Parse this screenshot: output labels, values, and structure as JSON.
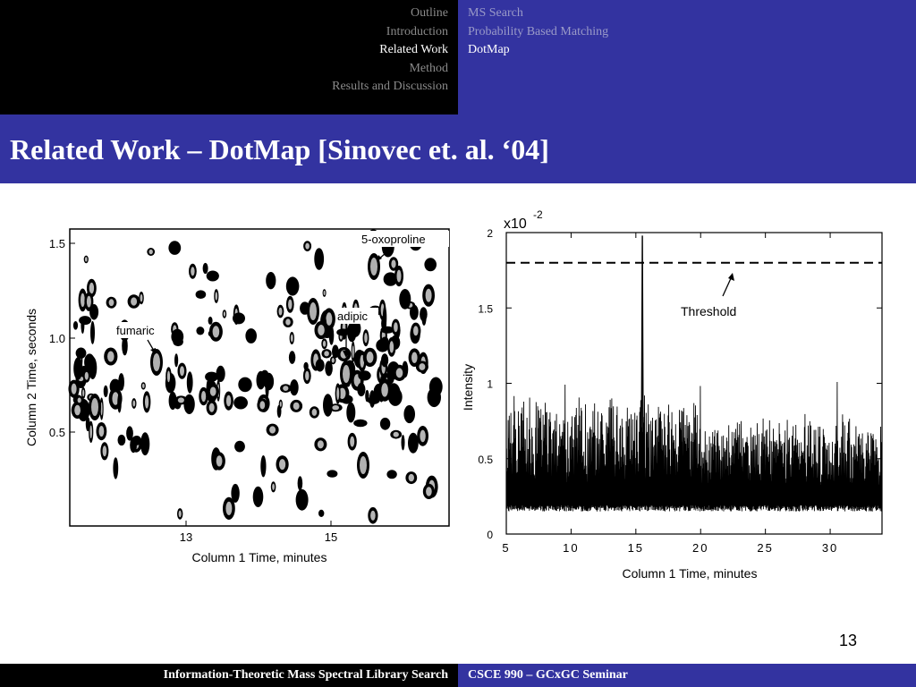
{
  "nav": {
    "sections": [
      {
        "label": "Outline",
        "active": false
      },
      {
        "label": "Introduction",
        "active": false
      },
      {
        "label": "Related Work",
        "active": true
      },
      {
        "label": "Method",
        "active": false
      },
      {
        "label": "Results and Discussion",
        "active": false
      }
    ],
    "subsections": [
      {
        "label": "MS Search",
        "active": false
      },
      {
        "label": "Probability Based Matching",
        "active": false
      },
      {
        "label": "DotMap",
        "active": true
      }
    ]
  },
  "slide": {
    "title": "Related Work – DotMap [Sinovec et. al. ‘04]",
    "number": "13"
  },
  "footer": {
    "left": "Information-Theoretic Mass Spectral Library Search",
    "right": "CSCE 990 – GCxGC Seminar"
  },
  "chart_data": [
    {
      "type": "scatter",
      "xlabel": "Column 1 Time, minutes",
      "ylabel": "Column 2 Time, seconds",
      "x_ticks": [
        "13",
        "15"
      ],
      "y_ticks": [
        "0.5",
        "1.0",
        "1.5"
      ],
      "annotations": [
        "5-oxoproline",
        "adipic",
        "fumaric"
      ],
      "colors": {
        "spot_fill": "#000000",
        "spot_core": "#b5b5b5"
      }
    },
    {
      "type": "line",
      "xlabel": "Column 1 Time, minutes",
      "ylabel": "Intensity",
      "scale_label": "x10",
      "scale_exponent": "-2",
      "x_ticks": [
        "5",
        "10",
        "15",
        "20",
        "25",
        "30"
      ],
      "y_ticks": [
        "0",
        "0.5",
        "1",
        "1.5",
        "2"
      ],
      "xlim": [
        5,
        34
      ],
      "ylim": [
        0,
        2
      ],
      "threshold": 1.8,
      "threshold_label": "Threshold",
      "peak": {
        "x": 15.5,
        "y": 1.98
      }
    }
  ]
}
